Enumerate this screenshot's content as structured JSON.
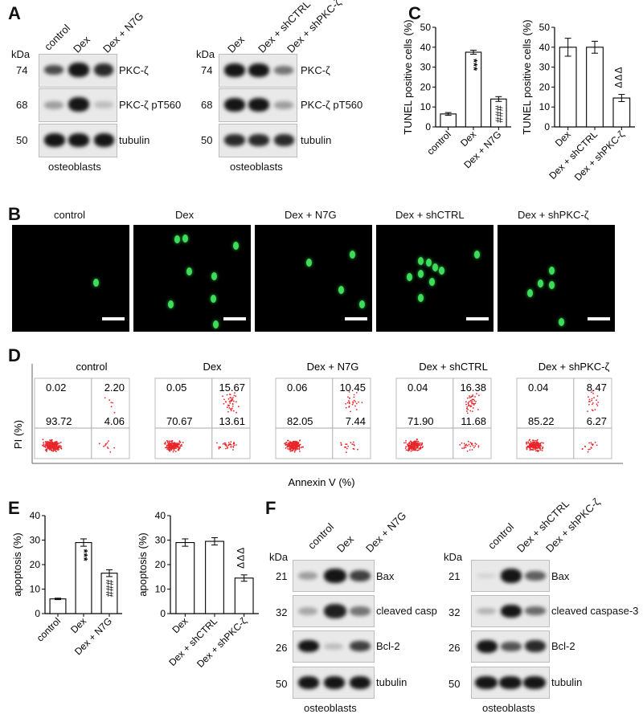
{
  "panels": {
    "A": "A",
    "B": "B",
    "C": "C",
    "D": "D",
    "E": "E",
    "F": "F"
  },
  "common": {
    "kda": "kDa",
    "osteoblasts": "osteoblasts"
  },
  "panelA": {
    "left": {
      "lanes": [
        "control",
        "Dex",
        "Dex + N7G"
      ],
      "rows": [
        {
          "mw": "74",
          "label": "PKC-ζ"
        },
        {
          "mw": "68",
          "label": "PKC-ζ pT560"
        },
        {
          "mw": "50",
          "label": "tubulin"
        }
      ]
    },
    "right": {
      "lanes": [
        "Dex",
        "Dex + shCTRL",
        "Dex + shPKC-ζ"
      ],
      "rows": [
        {
          "mw": "74",
          "label": "PKC-ζ"
        },
        {
          "mw": "68",
          "label": "PKC-ζ pT560"
        },
        {
          "mw": "50",
          "label": "tubulin"
        }
      ]
    }
  },
  "panelB": {
    "titles": [
      "control",
      "Dex",
      "Dex + N7G",
      "Dex + shCTRL",
      "Dex + shPKC-ζ"
    ]
  },
  "panelD": {
    "titles": [
      "control",
      "Dex",
      "Dex + N7G",
      "Dex + shCTRL",
      "Dex + shPKC-ζ"
    ],
    "ylabel": "PI (%)",
    "xlabel": "Annexin V (%)",
    "quadrants": [
      {
        "ul": "0.02",
        "ur": "2.20",
        "ll": "93.72",
        "lr": "4.06"
      },
      {
        "ul": "0.05",
        "ur": "15.67",
        "ll": "70.67",
        "lr": "13.61"
      },
      {
        "ul": "0.06",
        "ur": "10.45",
        "ll": "82.05",
        "lr": "7.44"
      },
      {
        "ul": "0.04",
        "ur": "16.38",
        "ll": "71.90",
        "lr": "11.68"
      },
      {
        "ul": "0.04",
        "ur": "8.47",
        "ll": "85.22",
        "lr": "6.27"
      }
    ]
  },
  "panelF": {
    "left": {
      "lanes": [
        "control",
        "Dex",
        "Dex + N7G"
      ],
      "rows": [
        {
          "mw": "21",
          "label": "Bax"
        },
        {
          "mw": "32",
          "label": "cleaved casp"
        },
        {
          "mw": "26",
          "label": "Bcl-2"
        },
        {
          "mw": "50",
          "label": "tubulin"
        }
      ]
    },
    "right": {
      "lanes": [
        "control",
        "Dex + shCTRL",
        "Dex + shPKC-ζ"
      ],
      "rows": [
        {
          "mw": "21",
          "label": "Bax"
        },
        {
          "mw": "32",
          "label": "cleaved caspase-3"
        },
        {
          "mw": "26",
          "label": "Bcl-2"
        },
        {
          "mw": "50",
          "label": "tubulin"
        }
      ]
    }
  },
  "chart_data": [
    {
      "type": "bar",
      "panel": "C-left",
      "categories": [
        "control",
        "Dex",
        "Dex + N7G"
      ],
      "values": [
        6.5,
        37.5,
        14
      ],
      "errors": [
        0.7,
        1.0,
        1.2
      ],
      "ylabel": "TUNEL positive cells (%)",
      "ylim": [
        0,
        50
      ],
      "yticks": [
        "0",
        "10",
        "20",
        "30",
        "40",
        "50"
      ],
      "annotations": [
        "",
        "***",
        "###"
      ]
    },
    {
      "type": "bar",
      "panel": "C-right",
      "categories": [
        "Dex",
        "Dex + shCTRL",
        "Dex + shPKC-ζ"
      ],
      "values": [
        40,
        40,
        14.5
      ],
      "errors": [
        4.5,
        3.0,
        1.8
      ],
      "ylabel": "TUNEL positive cells (%)",
      "ylim": [
        0,
        50
      ],
      "yticks": [
        "0",
        "10",
        "20",
        "30",
        "40",
        "50"
      ],
      "annotations": [
        "",
        "",
        "ΔΔΔ"
      ]
    },
    {
      "type": "bar",
      "panel": "E-left",
      "categories": [
        "control",
        "Dex",
        "Dex + N7G"
      ],
      "values": [
        6,
        29,
        16.5
      ],
      "errors": [
        0.3,
        1.5,
        1.4
      ],
      "ylabel": "apoptosis (%)",
      "ylim": [
        0,
        40
      ],
      "yticks": [
        "0",
        "10",
        "20",
        "30",
        "40"
      ],
      "annotations": [
        "",
        "***",
        "###"
      ]
    },
    {
      "type": "bar",
      "panel": "E-right",
      "categories": [
        "Dex",
        "Dex + shCTRL",
        "Dex + shPKC-ζ"
      ],
      "values": [
        29,
        29.5,
        14.5
      ],
      "errors": [
        1.5,
        1.5,
        1.3
      ],
      "ylabel": "apoptosis (%)",
      "ylim": [
        0,
        40
      ],
      "yticks": [
        "0",
        "10",
        "20",
        "30",
        "40"
      ],
      "annotations": [
        "",
        "",
        "ΔΔΔ"
      ]
    }
  ]
}
